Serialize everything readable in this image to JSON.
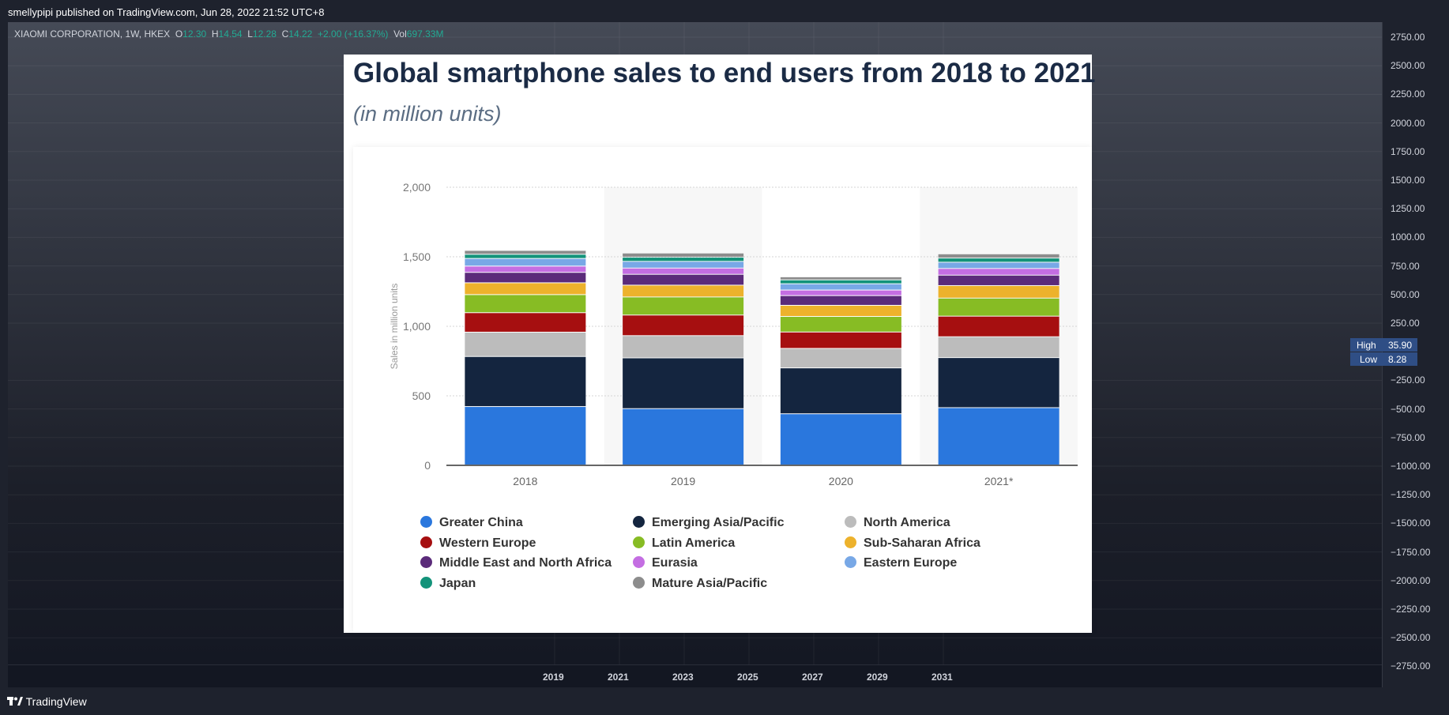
{
  "header": {
    "published": "smellypipi published on TradingView.com, Jun 28, 2022 21:52 UTC+8"
  },
  "symbol": {
    "name": "XIAOMI CORPORATION, 1W, HKEX",
    "o_label": "O",
    "o": "12.30",
    "h_label": "H",
    "h": "14.54",
    "l_label": "L",
    "l": "12.28",
    "c_label": "C",
    "c": "14.22",
    "change": "+2.00 (+16.37%)",
    "vol_label": "Vol",
    "vol": "697.33M"
  },
  "price_axis": [
    "2750.00",
    "2500.00",
    "2250.00",
    "2000.00",
    "1750.00",
    "1500.00",
    "1250.00",
    "1000.00",
    "750.00",
    "500.00",
    "250.00",
    "−250.00",
    "−500.00",
    "−750.00",
    "−1000.00",
    "−1250.00",
    "−1500.00",
    "−1750.00",
    "−2000.00",
    "−2250.00",
    "−2500.00",
    "−2750.00"
  ],
  "high_low": {
    "high_label": "High",
    "high": "35.90",
    "low_label": "Low",
    "low": "8.28"
  },
  "time_axis": [
    "2019",
    "2021",
    "2023",
    "2025",
    "2027",
    "2029",
    "2031"
  ],
  "footer": {
    "brand": "TradingView"
  },
  "colors": {
    "greater_china": "#2a77dd",
    "emerging_asia": "#14253f",
    "north_america": "#bcbcbc",
    "western_europe": "#a60f10",
    "latin_america": "#87bc24",
    "sub_saharan_africa": "#edb22c",
    "middle_east": "#5b2b7a",
    "eurasia": "#c46ee2",
    "eastern_europe": "#78a8e6",
    "japan": "#13937a",
    "mature_asia": "#8d8d8d"
  },
  "chart_data": {
    "type": "bar",
    "stacked": true,
    "title": "Global smartphone sales to end users from 2018 to 2021",
    "subtitle": "(in million units)",
    "xlabel": "",
    "ylabel": "Sales in million units",
    "ylim": [
      0,
      2000
    ],
    "yticks": [
      "0",
      "500",
      "1,000",
      "1,500",
      "2,000"
    ],
    "categories": [
      "2018",
      "2019",
      "2020",
      "2021*"
    ],
    "series": [
      {
        "name": "Greater China",
        "color": "#2a77dd",
        "values": [
          420,
          405,
          368,
          412
        ]
      },
      {
        "name": "Emerging Asia/Pacific",
        "color": "#14253f",
        "values": [
          360,
          365,
          330,
          360
        ]
      },
      {
        "name": "North America",
        "color": "#bcbcbc",
        "values": [
          175,
          160,
          140,
          150
        ]
      },
      {
        "name": "Western Europe",
        "color": "#a60f10",
        "values": [
          140,
          148,
          118,
          148
        ]
      },
      {
        "name": "Latin America",
        "color": "#87bc24",
        "values": [
          130,
          130,
          112,
          130
        ]
      },
      {
        "name": "Sub-Saharan Africa",
        "color": "#edb22c",
        "values": [
          85,
          85,
          80,
          90
        ]
      },
      {
        "name": "Middle East and North Africa",
        "color": "#5b2b7a",
        "values": [
          75,
          78,
          70,
          75
        ]
      },
      {
        "name": "Eurasia",
        "color": "#c46ee2",
        "values": [
          45,
          45,
          40,
          48
        ]
      },
      {
        "name": "Eastern Europe",
        "color": "#78a8e6",
        "values": [
          55,
          48,
          45,
          45
        ]
      },
      {
        "name": "Japan",
        "color": "#13937a",
        "values": [
          30,
          30,
          28,
          30
        ]
      },
      {
        "name": "Mature Asia/Pacific",
        "color": "#8d8d8d",
        "values": [
          28,
          30,
          22,
          30
        ]
      }
    ],
    "legend_placement": "bottom"
  }
}
